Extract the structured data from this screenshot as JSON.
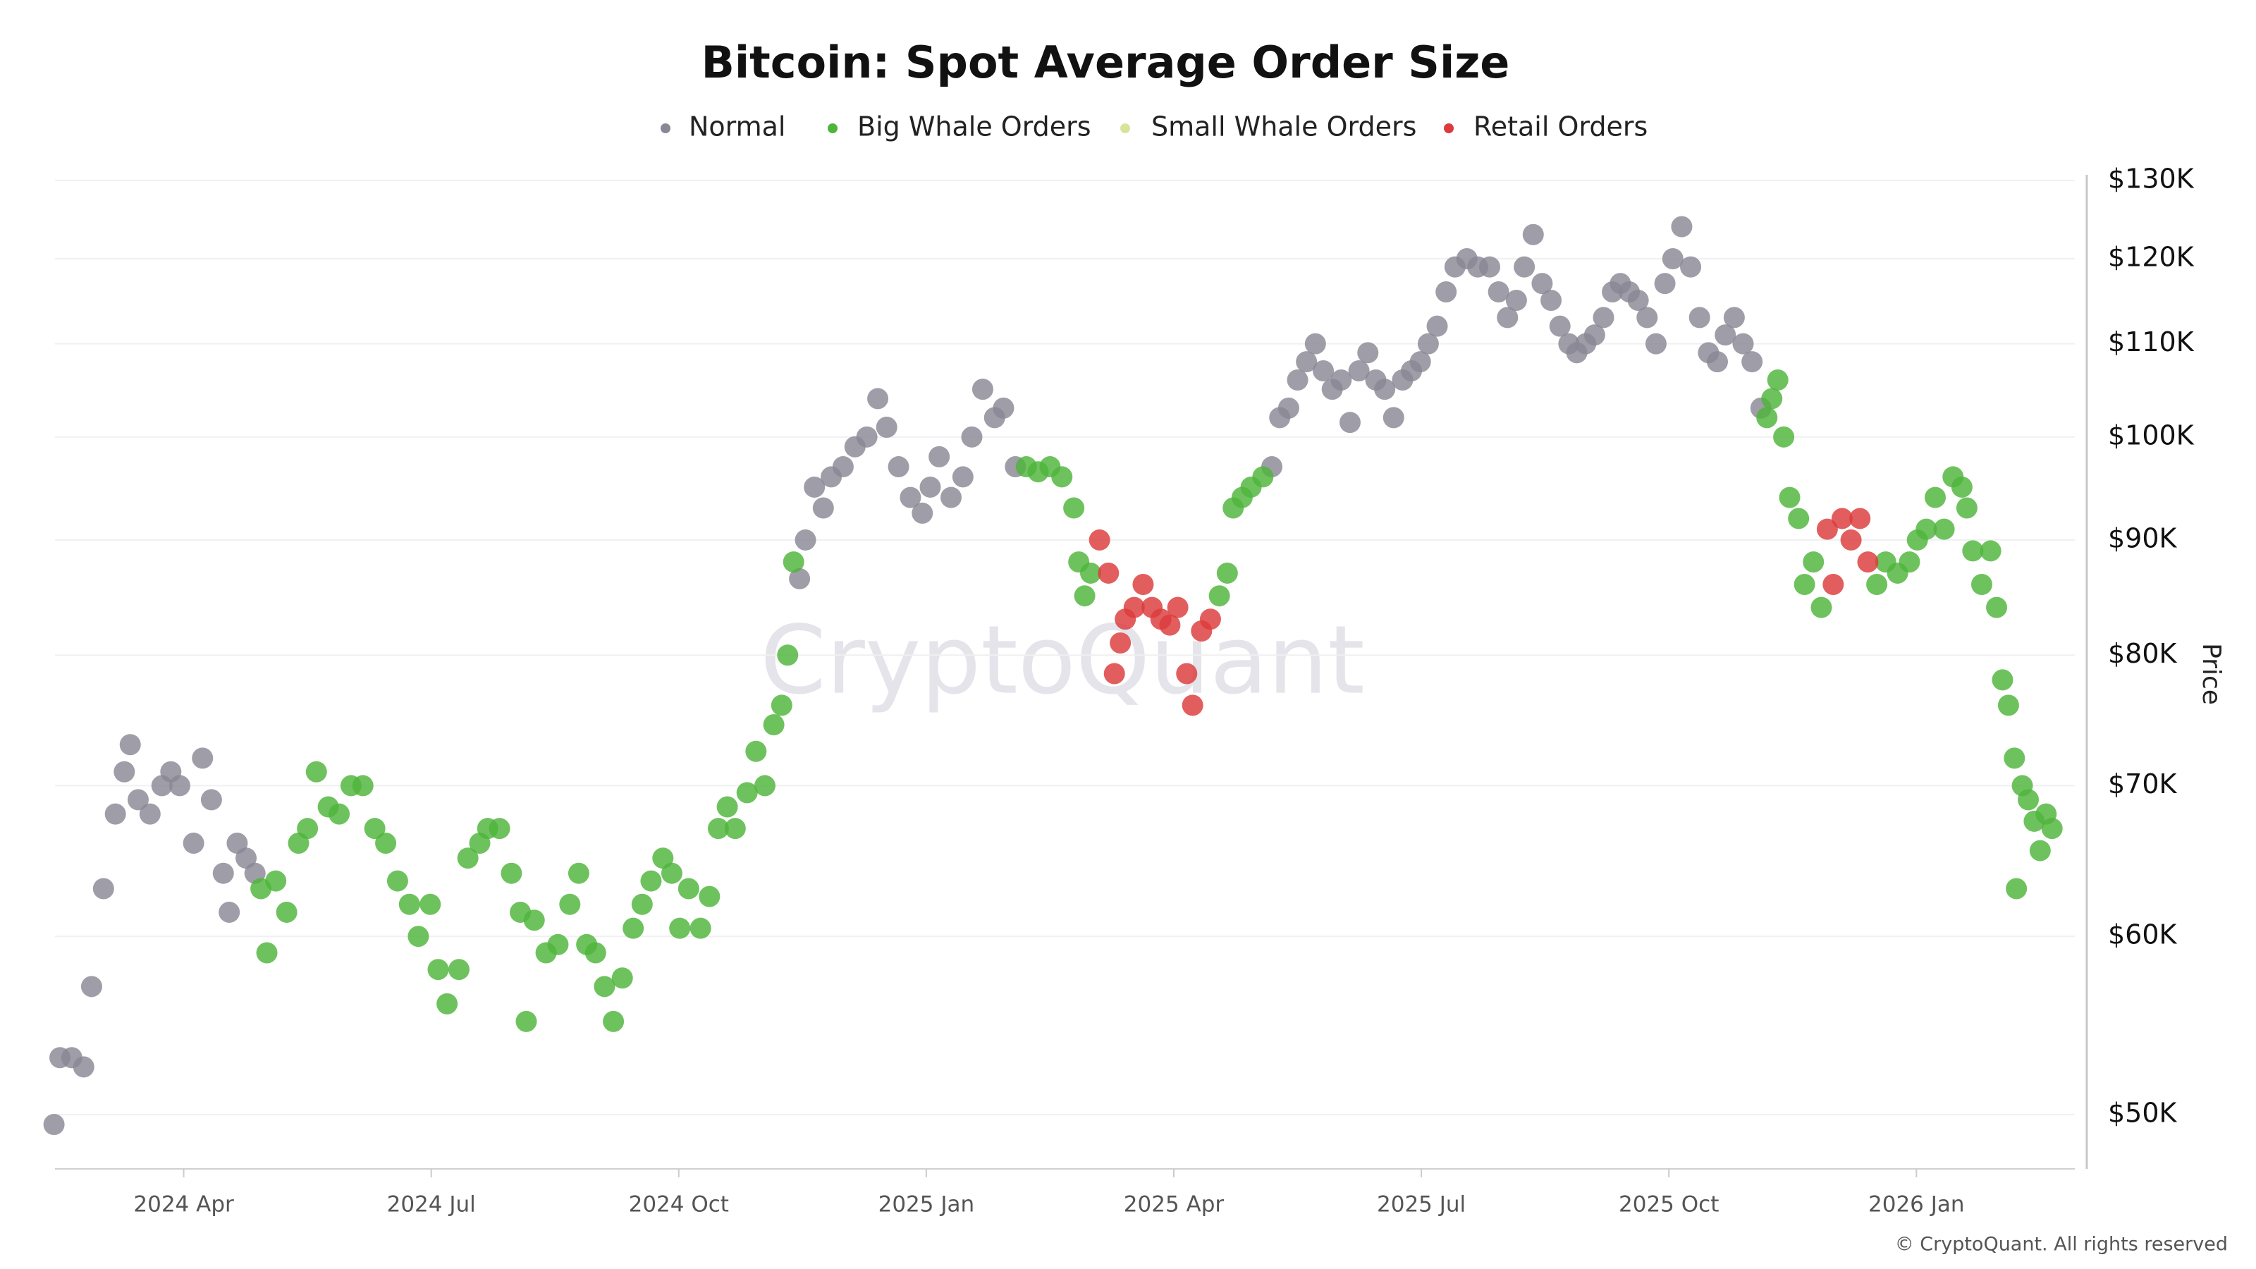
{
  "chart_data": {
    "type": "scatter",
    "title": "Bitcoin: Spot Average Order Size",
    "y_label": "Price",
    "watermark": "CryptoQuant",
    "credit": "© CryptoQuant. All rights reserved",
    "ylog": true,
    "grid": true,
    "legend": "top",
    "xlim": [
      2024.12,
      2026.16
    ],
    "xticks": [
      {
        "value": 2024.25,
        "label": "2024 Apr"
      },
      {
        "value": 2024.5,
        "label": "2024 Jul"
      },
      {
        "value": 2024.75,
        "label": "2024 Oct"
      },
      {
        "value": 2025,
        "label": "2025 Jan"
      },
      {
        "value": 2025.25,
        "label": "2025 Apr"
      },
      {
        "value": 2025.5,
        "label": "2025 Jul"
      },
      {
        "value": 2025.75,
        "label": "2025 Oct"
      },
      {
        "value": 2026,
        "label": "2026 Jan"
      }
    ],
    "ylim": [
      47300,
      130000
    ],
    "yticks": [
      {
        "value": 50000,
        "label": "$50K"
      },
      {
        "value": 60000,
        "label": "$60K"
      },
      {
        "value": 70000,
        "label": "$70K"
      },
      {
        "value": 80000,
        "label": "$80K"
      },
      {
        "value": 90000,
        "label": "$90K"
      },
      {
        "value": 100000,
        "label": "$100K"
      },
      {
        "value": 110000,
        "label": "$110K"
      },
      {
        "value": 120000,
        "label": "$120K"
      },
      {
        "value": 130000,
        "label": "$130K"
      }
    ],
    "series": [
      {
        "name": "Normal",
        "color": "#8a8795",
        "x": [
          2024.119,
          2024.125,
          2024.137,
          2024.149,
          2024.157,
          2024.169,
          2024.181,
          2024.19,
          2024.196,
          2024.204,
          2024.216,
          2024.228,
          2024.237,
          2024.246,
          2024.26,
          2024.269,
          2024.278,
          2024.29,
          2024.296,
          2024.304,
          2024.313,
          2024.322,
          2024.872,
          2024.878,
          2024.887,
          2024.896,
          2024.904,
          2024.916,
          2024.928,
          2024.94,
          2024.951,
          2024.96,
          2024.972,
          2024.984,
          2024.996,
          2025.004,
          2025.013,
          2025.025,
          2025.037,
          2025.046,
          2025.057,
          2025.069,
          2025.078,
          2025.09,
          2025.349,
          2025.357,
          2025.366,
          2025.375,
          2025.384,
          2025.393,
          2025.401,
          2025.41,
          2025.419,
          2025.428,
          2025.437,
          2025.446,
          2025.454,
          2025.463,
          2025.472,
          2025.481,
          2025.49,
          2025.499,
          2025.507,
          2025.516,
          2025.525,
          2025.534,
          2025.546,
          2025.557,
          2025.569,
          2025.578,
          2025.587,
          2025.596,
          2025.604,
          2025.613,
          2025.622,
          2025.631,
          2025.64,
          2025.649,
          2025.657,
          2025.666,
          2025.675,
          2025.684,
          2025.693,
          2025.701,
          2025.71,
          2025.719,
          2025.728,
          2025.737,
          2025.746,
          2025.754,
          2025.763,
          2025.772,
          2025.781,
          2025.79,
          2025.799,
          2025.807,
          2025.816,
          2025.825,
          2025.834,
          2025.843
        ],
        "values": [
          49500,
          53000,
          53000,
          52500,
          57000,
          63000,
          68000,
          71000,
          73000,
          69000,
          68000,
          70000,
          71000,
          70000,
          66000,
          72000,
          69000,
          64000,
          61500,
          66000,
          65000,
          64000,
          86500,
          90000,
          95000,
          93000,
          96000,
          97000,
          99000,
          100000,
          104000,
          101000,
          97000,
          94000,
          92500,
          95000,
          98000,
          94000,
          96000,
          100000,
          105000,
          102000,
          103000,
          97000,
          97000,
          102000,
          103000,
          106000,
          108000,
          110000,
          107000,
          105000,
          106000,
          101500,
          107000,
          109000,
          106000,
          105000,
          102000,
          106000,
          107000,
          108000,
          110000,
          112000,
          116000,
          119000,
          120000,
          119000,
          119000,
          116000,
          113000,
          115000,
          119000,
          123000,
          117000,
          115000,
          112000,
          110000,
          109000,
          110000,
          111000,
          113000,
          116000,
          117000,
          116000,
          115000,
          113000,
          110000,
          117000,
          120000,
          124000,
          119000,
          113000,
          109000,
          108000,
          111000,
          113000,
          110000,
          108000,
          103000
        ]
      },
      {
        "name": "Big Whale Orders",
        "color": "#4eb53b",
        "x": [
          2024.328,
          2024.334,
          2024.343,
          2024.354,
          2024.366,
          2024.375,
          2024.384,
          2024.396,
          2024.407,
          2024.419,
          2024.431,
          2024.443,
          2024.454,
          2024.466,
          2024.478,
          2024.487,
          2024.499,
          2024.507,
          2024.516,
          2024.528,
          2024.537,
          2024.549,
          2024.557,
          2024.569,
          2024.581,
          2024.59,
          2024.596,
          2024.604,
          2024.616,
          2024.628,
          2024.64,
          2024.649,
          2024.657,
          2024.666,
          2024.675,
          2024.684,
          2024.693,
          2024.704,
          2024.713,
          2024.722,
          2024.734,
          2024.743,
          2024.751,
          2024.76,
          2024.772,
          2024.781,
          2024.79,
          2024.799,
          2024.807,
          2024.819,
          2024.828,
          2024.837,
          2024.846,
          2024.854,
          2024.86,
          2024.866,
          2025.101,
          2025.113,
          2025.125,
          2025.137,
          2025.149,
          2025.154,
          2025.16,
          2025.166,
          2025.296,
          2025.304,
          2025.31,
          2025.319,
          2025.328,
          2025.34,
          2025.849,
          2025.854,
          2025.86,
          2025.866,
          2025.872,
          2025.881,
          2025.887,
          2025.896,
          2025.904,
          2025.96,
          2025.969,
          2025.981,
          2025.993,
          2026.001,
          2026.01,
          2026.019,
          2026.028,
          2026.037,
          2026.046,
          2026.051,
          2026.057,
          2026.066,
          2026.075,
          2026.081,
          2026.087,
          2026.093,
          2026.099,
          2026.101,
          2026.107,
          2026.113,
          2026.119,
          2026.125,
          2026.131,
          2026.137
        ],
        "values": [
          63000,
          59000,
          63500,
          61500,
          66000,
          67000,
          71000,
          68500,
          68000,
          70000,
          70000,
          67000,
          66000,
          63500,
          62000,
          60000,
          62000,
          58000,
          56000,
          58000,
          65000,
          66000,
          67000,
          67000,
          64000,
          61500,
          55000,
          61000,
          59000,
          59500,
          62000,
          64000,
          59500,
          59000,
          57000,
          55000,
          57500,
          60500,
          62000,
          63500,
          65000,
          64000,
          60500,
          63000,
          60500,
          62500,
          67000,
          68500,
          67000,
          69500,
          72500,
          70000,
          74500,
          76000,
          80000,
          88000,
          97000,
          96500,
          97000,
          96000,
          93000,
          88000,
          85000,
          87000,
          85000,
          87000,
          93000,
          94000,
          95000,
          96000,
          102000,
          104000,
          106000,
          100000,
          94000,
          92000,
          86000,
          88000,
          84000,
          86000,
          88000,
          87000,
          88000,
          90000,
          91000,
          94000,
          91000,
          96000,
          95000,
          93000,
          89000,
          86000,
          89000,
          84000,
          78000,
          76000,
          72000,
          63000,
          70000,
          69000,
          67500,
          65500,
          68000,
          67000
        ]
      },
      {
        "name": "Small Whale Orders",
        "color": "#d6e59b",
        "x": [],
        "values": []
      },
      {
        "name": "Retail Orders",
        "color": "#dc3b3b",
        "x": [
          2025.175,
          2025.184,
          2025.19,
          2025.196,
          2025.201,
          2025.21,
          2025.219,
          2025.228,
          2025.237,
          2025.246,
          2025.254,
          2025.263,
          2025.269,
          2025.278,
          2025.287,
          2025.91,
          2025.916,
          2025.925,
          2025.934,
          2025.943,
          2025.951
        ],
        "values": [
          90000,
          87000,
          78500,
          81000,
          83000,
          84000,
          86000,
          84000,
          83000,
          82500,
          84000,
          78500,
          76000,
          82000,
          83000,
          91000,
          86000,
          92000,
          90000,
          92000,
          88000
        ]
      }
    ]
  }
}
